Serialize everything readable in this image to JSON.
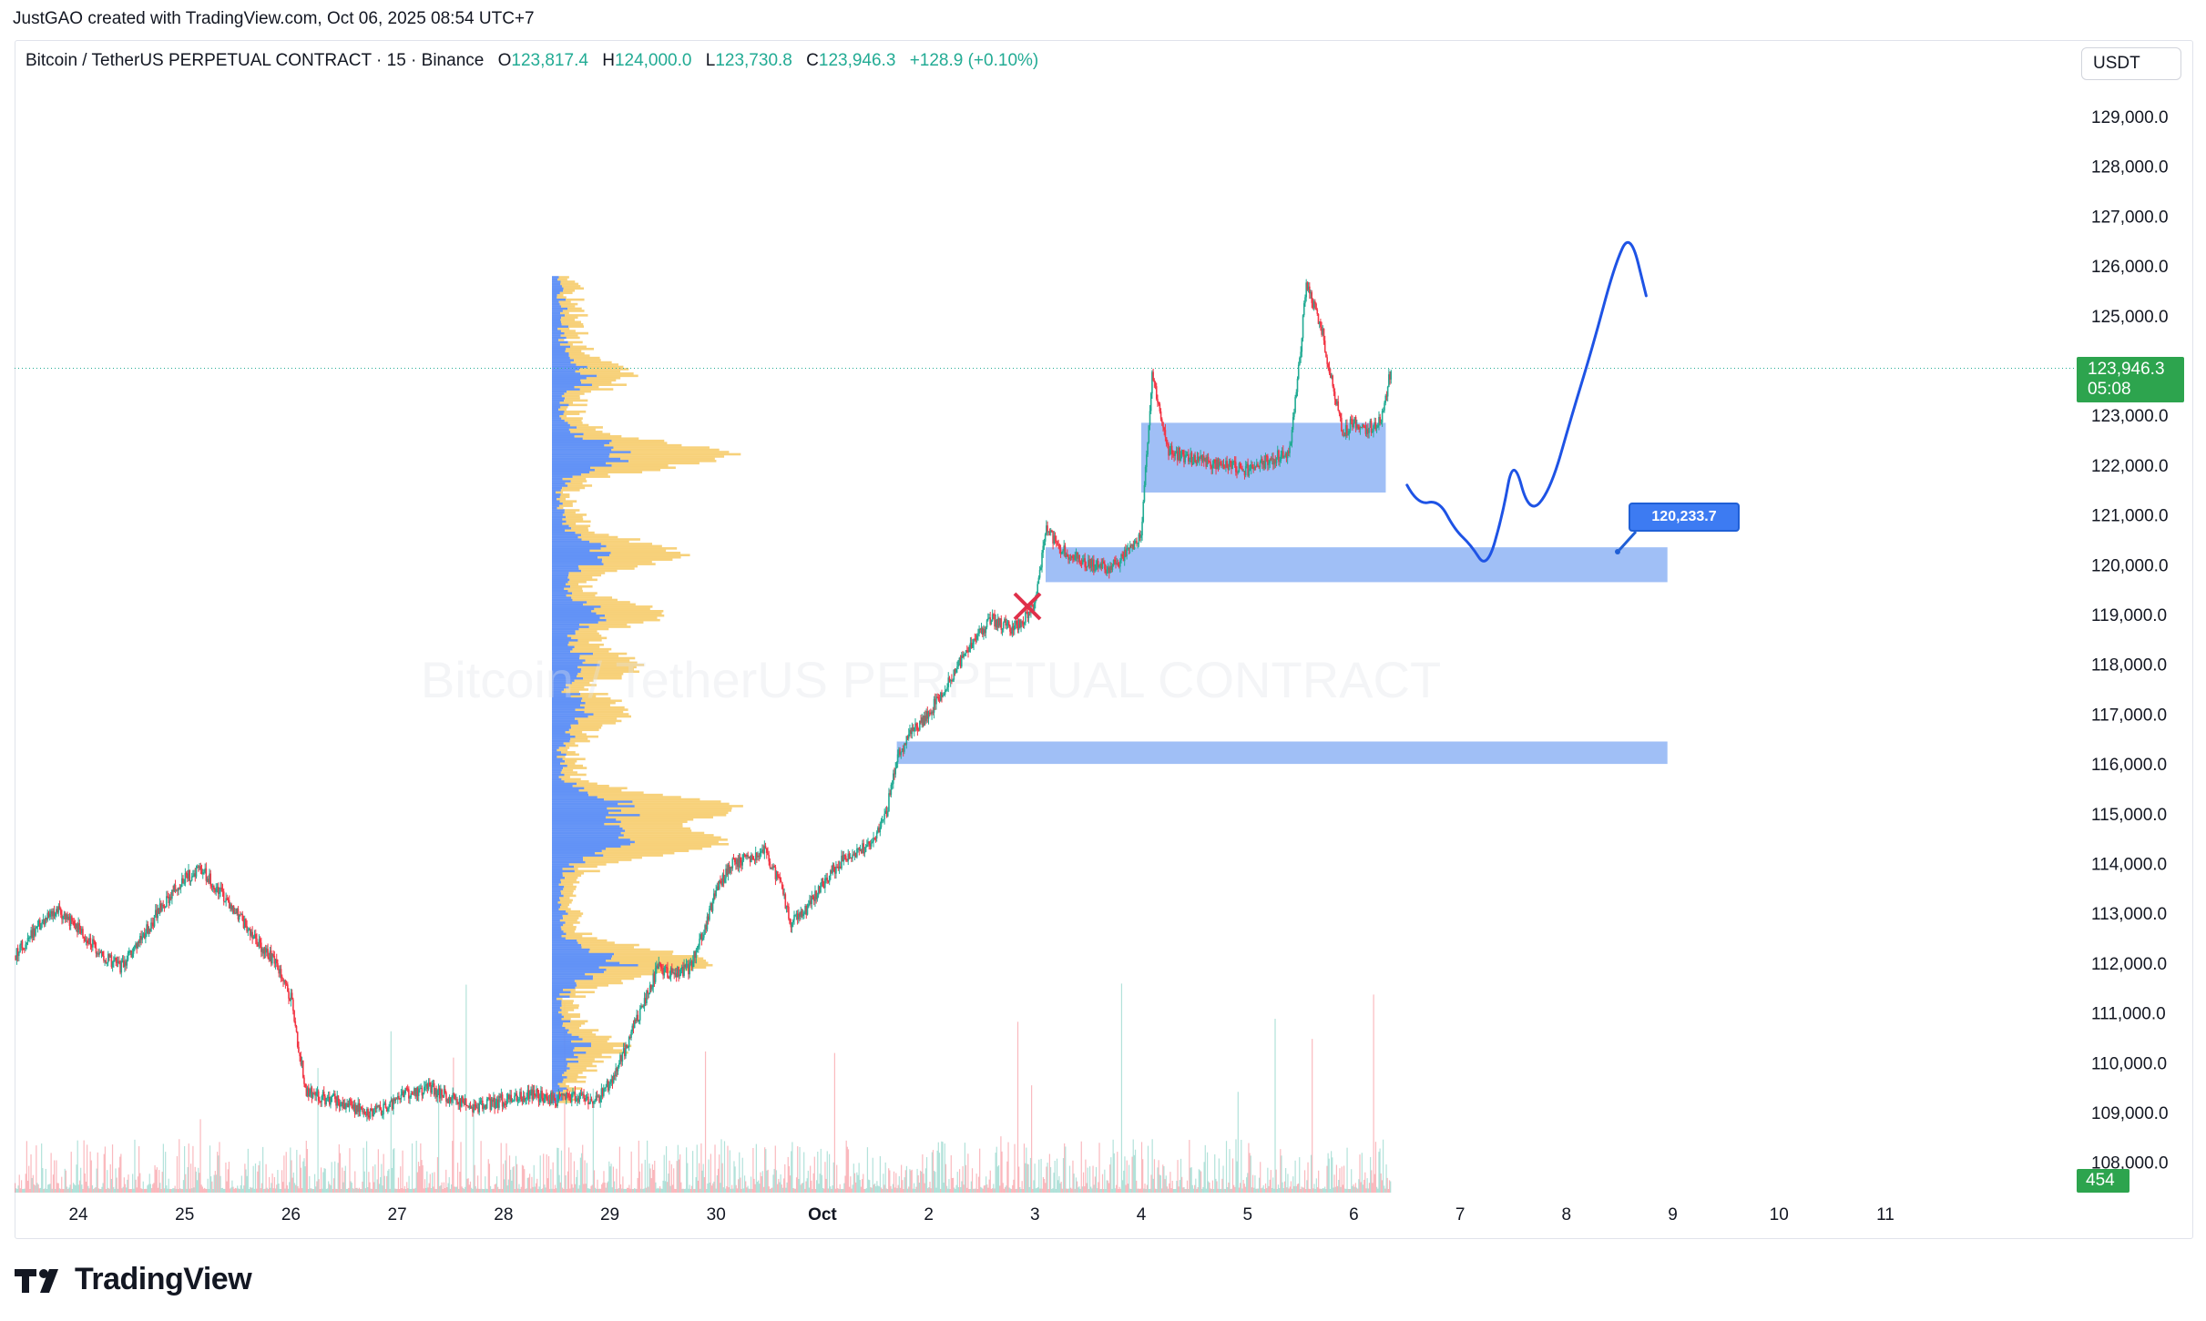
{
  "author_line": "JustGAO created with TradingView.com, Oct 06, 2025 08:54 UTC+7",
  "symbol": {
    "title": "Bitcoin / TetherUS PERPETUAL CONTRACT · 15 · Binance",
    "o_label": "O",
    "o_value": "123,817.4",
    "h_label": "H",
    "h_value": "124,000.0",
    "l_label": "L",
    "l_value": "123,730.8",
    "c_label": "C",
    "c_value": "123,946.3",
    "change": "+128.9 (+0.10%)"
  },
  "currency": "USDT",
  "watermark": "Bitcoin / TetherUS PERPETUAL CONTRACT",
  "last_price": {
    "value": "123,946.3",
    "countdown": "05:08"
  },
  "volume_tag": "454",
  "annotation_price": "120,233.7",
  "brand": "TradingView",
  "colors": {
    "up": "#22ab94",
    "down": "#f23645",
    "zone": "#8fb4f5",
    "path": "#1e53e5",
    "profile_blue": "#5b8df5",
    "profile_yellow": "#f7cf73"
  },
  "chart_data": {
    "type": "candlestick",
    "y_axis": {
      "ticks": [
        129000,
        128000,
        127000,
        126000,
        125000,
        124000,
        123000,
        122000,
        121000,
        120000,
        119000,
        118000,
        117000,
        116000,
        115000,
        114000,
        113000,
        112000,
        111000,
        110000,
        109000,
        108000
      ],
      "tick_labels": [
        "129,000.0",
        "128,000.0",
        "127,000.0",
        "126,000.0",
        "125,000.0",
        "",
        "123,000.0",
        "122,000.0",
        "121,000.0",
        "120,000.0",
        "119,000.0",
        "118,000.0",
        "117,000.0",
        "116,000.0",
        "115,000.0",
        "114,000.0",
        "113,000.0",
        "112,000.0",
        "111,000.0",
        "110,000.0",
        "109,000.0",
        "108,000.0"
      ]
    },
    "x_axis": {
      "ticks": [
        24,
        25,
        26,
        27,
        28,
        29,
        30,
        31,
        32,
        33,
        34,
        35,
        36,
        37,
        38,
        39,
        40,
        41
      ],
      "tick_labels": [
        "24",
        "25",
        "26",
        "27",
        "28",
        "29",
        "30",
        "Oct",
        "2",
        "3",
        "4",
        "5",
        "6",
        "7",
        "8",
        "9",
        "10",
        "11"
      ],
      "range": [
        23.4,
        42.8
      ]
    },
    "price_path": [
      [
        23.4,
        112150
      ],
      [
        23.6,
        112700
      ],
      [
        23.8,
        113100
      ],
      [
        24.0,
        112700
      ],
      [
        24.2,
        112200
      ],
      [
        24.4,
        111900
      ],
      [
        24.6,
        112500
      ],
      [
        24.8,
        113200
      ],
      [
        25.0,
        113700
      ],
      [
        25.15,
        113900
      ],
      [
        25.3,
        113500
      ],
      [
        25.5,
        113000
      ],
      [
        25.7,
        112400
      ],
      [
        25.85,
        112000
      ],
      [
        26.0,
        111300
      ],
      [
        26.08,
        110200
      ],
      [
        26.15,
        109400
      ],
      [
        26.3,
        109300
      ],
      [
        26.5,
        109200
      ],
      [
        26.7,
        109000
      ],
      [
        26.9,
        109100
      ],
      [
        27.1,
        109400
      ],
      [
        27.3,
        109500
      ],
      [
        27.5,
        109300
      ],
      [
        27.7,
        109100
      ],
      [
        27.9,
        109200
      ],
      [
        28.1,
        109300
      ],
      [
        28.3,
        109350
      ],
      [
        28.5,
        109250
      ],
      [
        28.7,
        109300
      ],
      [
        28.85,
        109200
      ],
      [
        29.0,
        109600
      ],
      [
        29.15,
        110300
      ],
      [
        29.3,
        111100
      ],
      [
        29.45,
        111900
      ],
      [
        29.6,
        111800
      ],
      [
        29.75,
        111900
      ],
      [
        29.9,
        112700
      ],
      [
        30.0,
        113500
      ],
      [
        30.15,
        114000
      ],
      [
        30.3,
        114100
      ],
      [
        30.45,
        114300
      ],
      [
        30.6,
        113600
      ],
      [
        30.7,
        112800
      ],
      [
        30.85,
        113100
      ],
      [
        31.0,
        113600
      ],
      [
        31.15,
        114000
      ],
      [
        31.3,
        114200
      ],
      [
        31.45,
        114400
      ],
      [
        31.6,
        115000
      ],
      [
        31.7,
        116100
      ],
      [
        31.85,
        116700
      ],
      [
        32.0,
        117000
      ],
      [
        32.2,
        117700
      ],
      [
        32.4,
        118400
      ],
      [
        32.6,
        118900
      ],
      [
        32.8,
        118700
      ],
      [
        33.0,
        119200
      ],
      [
        33.1,
        120700
      ],
      [
        33.25,
        120300
      ],
      [
        33.4,
        120100
      ],
      [
        33.55,
        120000
      ],
      [
        33.7,
        119900
      ],
      [
        33.85,
        120200
      ],
      [
        34.0,
        120600
      ],
      [
        34.1,
        123800
      ],
      [
        34.25,
        122300
      ],
      [
        34.5,
        122100
      ],
      [
        34.8,
        122000
      ],
      [
        35.0,
        121900
      ],
      [
        35.2,
        122100
      ],
      [
        35.4,
        122300
      ],
      [
        35.5,
        124300
      ],
      [
        35.55,
        125700
      ],
      [
        35.7,
        124700
      ],
      [
        35.8,
        123600
      ],
      [
        35.9,
        122600
      ],
      [
        36.0,
        122900
      ],
      [
        36.1,
        122700
      ],
      [
        36.25,
        122900
      ],
      [
        36.35,
        123900
      ]
    ],
    "volume_profile": {
      "price_range": [
        109200,
        125800
      ],
      "poc": 122200
    },
    "zones": [
      {
        "from_x": 34.0,
        "to_x": 36.3,
        "low": 121450,
        "high": 122850
      },
      {
        "from_x": 33.1,
        "to_x": 38.95,
        "low": 119650,
        "high": 120350
      },
      {
        "from_x": 31.7,
        "to_x": 38.95,
        "low": 116000,
        "high": 116450
      }
    ],
    "projection": [
      [
        36.5,
        121600
      ],
      [
        36.6,
        121200
      ],
      [
        36.8,
        121300
      ],
      [
        36.95,
        120700
      ],
      [
        37.1,
        120400
      ],
      [
        37.25,
        119900
      ],
      [
        37.4,
        121000
      ],
      [
        37.5,
        122200
      ],
      [
        37.65,
        121000
      ],
      [
        37.85,
        121500
      ],
      [
        38.05,
        123000
      ],
      [
        38.25,
        124400
      ],
      [
        38.45,
        126000
      ],
      [
        38.6,
        126700
      ],
      [
        38.75,
        125400
      ]
    ]
  }
}
